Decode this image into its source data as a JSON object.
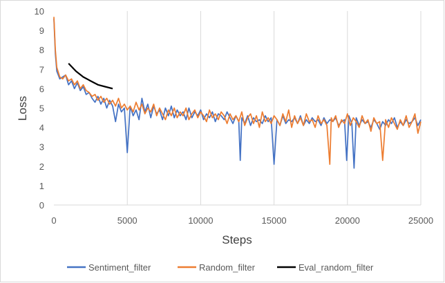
{
  "chart_data": {
    "type": "line",
    "title": "",
    "xlabel": "Steps",
    "ylabel": "Loss",
    "xlim": [
      0,
      25000
    ],
    "ylim": [
      0,
      10
    ],
    "xticks": [
      0,
      5000,
      10000,
      15000,
      20000,
      25000
    ],
    "yticks": [
      0,
      1,
      2,
      3,
      4,
      5,
      6,
      7,
      8,
      9,
      10
    ],
    "grid": "vertical",
    "legend": "bottom",
    "series": [
      {
        "name": "Sentiment_filter",
        "color": "#4472c4",
        "x": [
          0,
          100,
          200,
          400,
          600,
          800,
          1000,
          1200,
          1400,
          1600,
          1800,
          2000,
          2200,
          2400,
          2600,
          2800,
          3000,
          3200,
          3400,
          3600,
          3800,
          4000,
          4200,
          4400,
          4600,
          4800,
          5000,
          5200,
          5400,
          5600,
          5800,
          6000,
          6200,
          6400,
          6600,
          6800,
          7000,
          7200,
          7400,
          7600,
          7800,
          8000,
          8200,
          8400,
          8600,
          8800,
          9000,
          9200,
          9400,
          9600,
          9800,
          10000,
          10200,
          10400,
          10600,
          10800,
          11000,
          11200,
          11400,
          11600,
          11800,
          12000,
          12200,
          12400,
          12600,
          12700,
          12800,
          13000,
          13200,
          13400,
          13600,
          13800,
          14000,
          14200,
          14400,
          14600,
          14800,
          15000,
          15200,
          15400,
          15600,
          15800,
          16000,
          16200,
          16400,
          16600,
          16800,
          17000,
          17200,
          17400,
          17600,
          17800,
          18000,
          18200,
          18400,
          18600,
          18800,
          19000,
          19200,
          19400,
          19600,
          19800,
          19950,
          20100,
          20300,
          20450,
          20600,
          20800,
          21000,
          21200,
          21400,
          21600,
          21800,
          22000,
          22200,
          22400,
          22600,
          22800,
          23000,
          23200,
          23400,
          23600,
          23800,
          24000,
          24200,
          24400,
          24600,
          24800,
          25000
        ],
        "y": [
          9.6,
          7.8,
          6.9,
          6.5,
          6.6,
          6.7,
          6.2,
          6.4,
          6.0,
          6.3,
          5.9,
          6.1,
          5.7,
          5.8,
          5.5,
          5.3,
          5.6,
          5.2,
          5.5,
          5.0,
          5.4,
          5.1,
          4.3,
          5.2,
          4.8,
          5.0,
          2.7,
          5.1,
          4.6,
          4.9,
          4.4,
          5.5,
          4.8,
          5.2,
          4.5,
          5.1,
          4.7,
          4.9,
          4.4,
          5.0,
          4.6,
          5.1,
          4.5,
          4.9,
          4.6,
          4.8,
          4.4,
          5.0,
          4.5,
          4.8,
          4.6,
          4.9,
          4.4,
          4.7,
          4.5,
          4.8,
          4.3,
          4.7,
          4.6,
          4.4,
          4.8,
          4.5,
          4.2,
          4.6,
          4.3,
          2.3,
          4.5,
          4.2,
          4.6,
          4.1,
          4.5,
          4.3,
          4.4,
          4.2,
          4.6,
          4.3,
          4.5,
          2.1,
          4.4,
          4.1,
          4.6,
          4.2,
          4.4,
          4.3,
          4.5,
          4.2,
          4.6,
          4.1,
          4.4,
          4.2,
          4.5,
          4.3,
          4.4,
          4.1,
          4.5,
          4.2,
          4.4,
          4.3,
          4.5,
          4.1,
          4.3,
          4.4,
          2.3,
          4.6,
          4.2,
          1.9,
          4.5,
          4.1,
          4.4,
          4.2,
          4.3,
          4.0,
          4.4,
          4.2,
          3.9,
          4.3,
          4.1,
          4.4,
          4.2,
          4.5,
          4.0,
          4.3,
          4.1,
          4.4,
          4.2,
          4.3,
          4.5,
          4.1,
          4.4
        ]
      },
      {
        "name": "Random_filter",
        "color": "#ed7d31",
        "x": [
          0,
          100,
          200,
          400,
          600,
          800,
          1000,
          1200,
          1400,
          1600,
          1800,
          2000,
          2200,
          2400,
          2600,
          2800,
          3000,
          3200,
          3400,
          3600,
          3800,
          4000,
          4200,
          4400,
          4600,
          4800,
          5000,
          5200,
          5400,
          5600,
          5800,
          6000,
          6200,
          6400,
          6600,
          6800,
          7000,
          7200,
          7400,
          7600,
          7800,
          8000,
          8200,
          8400,
          8600,
          8800,
          9000,
          9200,
          9400,
          9600,
          9800,
          10000,
          10200,
          10400,
          10600,
          10800,
          11000,
          11200,
          11400,
          11600,
          11800,
          12000,
          12200,
          12400,
          12600,
          12800,
          13000,
          13200,
          13400,
          13600,
          13800,
          14000,
          14200,
          14400,
          14600,
          14800,
          15000,
          15200,
          15400,
          15600,
          15800,
          16000,
          16200,
          16400,
          16600,
          16800,
          17000,
          17200,
          17400,
          17600,
          17800,
          18000,
          18200,
          18400,
          18600,
          18800,
          18900,
          19000,
          19200,
          19400,
          19600,
          19800,
          20000,
          20200,
          20400,
          20600,
          20800,
          21000,
          21200,
          21400,
          21600,
          21800,
          22000,
          22200,
          22400,
          22600,
          22800,
          23000,
          23200,
          23400,
          23600,
          23800,
          24000,
          24200,
          24400,
          24600,
          24800,
          25000
        ],
        "y": [
          9.7,
          8.0,
          7.1,
          6.6,
          6.5,
          6.7,
          6.4,
          6.5,
          6.2,
          6.4,
          6.0,
          6.2,
          5.9,
          5.8,
          5.6,
          5.7,
          5.4,
          5.6,
          5.3,
          5.5,
          5.2,
          5.4,
          5.1,
          5.5,
          5.0,
          5.2,
          4.9,
          5.1,
          4.8,
          5.3,
          4.9,
          5.2,
          4.7,
          5.0,
          4.8,
          5.2,
          4.6,
          5.0,
          4.7,
          4.4,
          4.9,
          4.6,
          5.0,
          4.5,
          4.8,
          4.6,
          5.0,
          4.4,
          4.7,
          4.9,
          4.5,
          4.8,
          4.6,
          4.3,
          4.9,
          4.5,
          4.7,
          4.4,
          4.8,
          4.6,
          4.2,
          4.7,
          4.4,
          4.6,
          4.3,
          4.8,
          4.1,
          4.5,
          4.7,
          4.2,
          4.6,
          4.0,
          4.8,
          4.3,
          4.5,
          4.2,
          4.6,
          4.4,
          4.1,
          4.7,
          4.3,
          4.9,
          4.0,
          4.6,
          4.2,
          4.5,
          4.1,
          4.7,
          4.3,
          4.4,
          4.0,
          4.6,
          4.2,
          4.4,
          4.1,
          2.1,
          4.5,
          4.3,
          4.6,
          4.0,
          4.4,
          4.2,
          4.7,
          4.1,
          4.5,
          4.3,
          4.0,
          4.6,
          4.2,
          4.4,
          3.8,
          4.5,
          4.2,
          4.3,
          2.3,
          4.4,
          4.0,
          4.5,
          4.2,
          3.9,
          4.4,
          4.1,
          4.6,
          4.0,
          4.3,
          4.7,
          3.7,
          4.3
        ]
      },
      {
        "name": "Eval_random_filter",
        "color": "#000000",
        "x": [
          1000,
          1500,
          2000,
          2500,
          3000,
          3500,
          4000
        ],
        "y": [
          7.3,
          6.9,
          6.6,
          6.4,
          6.2,
          6.1,
          6.0
        ]
      }
    ]
  }
}
